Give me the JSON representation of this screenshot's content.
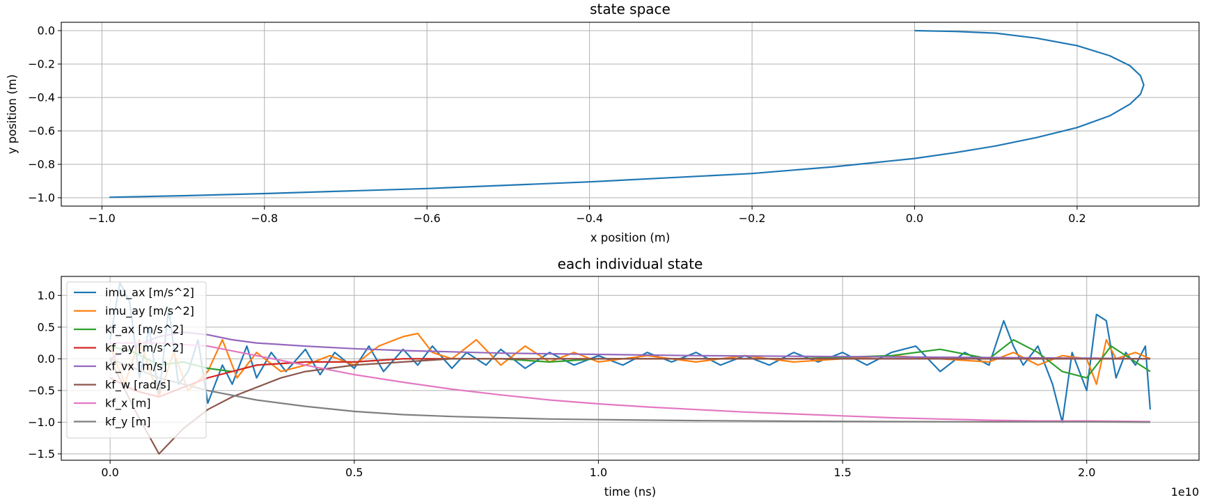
{
  "chart_data": [
    {
      "type": "line",
      "title": "state space",
      "xlabel": "x position (m)",
      "ylabel": "y position (m)",
      "xlim": [
        -1.05,
        0.35
      ],
      "ylim": [
        -1.05,
        0.05
      ],
      "grid": true,
      "x_ticks": [
        -1.0,
        -0.8,
        -0.6,
        -0.4,
        -0.2,
        0.0,
        0.2
      ],
      "x_tick_labels": [
        "−1.0",
        "−0.8",
        "−0.6",
        "−0.4",
        "−0.2",
        "0.0",
        "0.2"
      ],
      "y_ticks": [
        0.0,
        -0.2,
        -0.4,
        -0.6,
        -0.8,
        -1.0
      ],
      "y_tick_labels": [
        "0.0",
        "−0.2",
        "−0.4",
        "−0.6",
        "−0.8",
        "−1.0"
      ],
      "series": [
        {
          "color": "#1f77b4",
          "x": [
            0.0,
            0.05,
            0.1,
            0.15,
            0.2,
            0.24,
            0.265,
            0.278,
            0.282,
            0.278,
            0.265,
            0.24,
            0.2,
            0.15,
            0.1,
            0.05,
            0.0,
            -0.1,
            -0.2,
            -0.3,
            -0.4,
            -0.5,
            -0.6,
            -0.7,
            -0.8,
            -0.9,
            -0.95,
            -0.99,
            -0.97
          ],
          "y": [
            0.0,
            -0.005,
            -0.015,
            -0.045,
            -0.09,
            -0.15,
            -0.21,
            -0.27,
            -0.325,
            -0.38,
            -0.44,
            -0.51,
            -0.58,
            -0.64,
            -0.69,
            -0.73,
            -0.765,
            -0.815,
            -0.855,
            -0.88,
            -0.905,
            -0.925,
            -0.945,
            -0.96,
            -0.975,
            -0.988,
            -0.993,
            -0.997,
            -0.995
          ]
        }
      ]
    },
    {
      "type": "line",
      "title": "each individual state",
      "xlabel": "time (ns)",
      "ylabel": "",
      "x_offset_label": "1e10",
      "xlim": [
        -0.1,
        2.23
      ],
      "ylim": [
        -1.6,
        1.3
      ],
      "grid": true,
      "legend_position": "upper-left",
      "x_ticks": [
        0.0,
        0.5,
        1.0,
        1.5,
        2.0
      ],
      "x_tick_labels": [
        "0.0",
        "0.5",
        "1.0",
        "1.5",
        "2.0"
      ],
      "y_ticks": [
        1.0,
        0.5,
        0.0,
        -0.5,
        -1.0,
        -1.5
      ],
      "y_tick_labels": [
        "1.0",
        "0.5",
        "0.0",
        "−0.5",
        "−1.0",
        "−1.5"
      ],
      "series": [
        {
          "name": "imu_ax [m/s^2]",
          "color": "#1f77b4",
          "x": [
            0.0,
            0.02,
            0.04,
            0.06,
            0.08,
            0.1,
            0.12,
            0.14,
            0.16,
            0.18,
            0.2,
            0.23,
            0.25,
            0.28,
            0.3,
            0.33,
            0.36,
            0.4,
            0.43,
            0.46,
            0.5,
            0.53,
            0.56,
            0.6,
            0.63,
            0.66,
            0.7,
            0.73,
            0.77,
            0.8,
            0.85,
            0.9,
            0.95,
            1.0,
            1.05,
            1.1,
            1.15,
            1.2,
            1.25,
            1.3,
            1.35,
            1.4,
            1.45,
            1.5,
            1.55,
            1.6,
            1.65,
            1.7,
            1.75,
            1.8,
            1.83,
            1.85,
            1.87,
            1.9,
            1.93,
            1.95,
            1.97,
            2.0,
            2.02,
            2.04,
            2.06,
            2.08,
            2.1,
            2.12,
            2.13
          ],
          "y": [
            0.3,
            1.2,
            0.9,
            -0.3,
            0.5,
            -0.6,
            0.8,
            -0.4,
            -0.2,
            0.3,
            -0.7,
            -0.1,
            -0.4,
            0.2,
            -0.3,
            0.1,
            -0.2,
            0.15,
            -0.25,
            0.1,
            -0.15,
            0.2,
            -0.2,
            0.15,
            -0.1,
            0.2,
            -0.15,
            0.1,
            -0.1,
            0.15,
            -0.15,
            0.1,
            -0.1,
            0.05,
            -0.1,
            0.1,
            -0.05,
            0.1,
            -0.1,
            0.05,
            -0.1,
            0.1,
            -0.05,
            0.1,
            -0.1,
            0.1,
            0.2,
            -0.2,
            0.1,
            -0.1,
            0.6,
            0.2,
            -0.1,
            0.2,
            -0.4,
            -1.0,
            0.1,
            -0.5,
            0.7,
            0.6,
            -0.3,
            0.1,
            -0.1,
            0.2,
            -0.8
          ]
        },
        {
          "name": "imu_ay [m/s^2]",
          "color": "#ff7f0e",
          "x": [
            0.0,
            0.03,
            0.06,
            0.1,
            0.13,
            0.16,
            0.2,
            0.23,
            0.26,
            0.3,
            0.35,
            0.4,
            0.45,
            0.5,
            0.55,
            0.6,
            0.63,
            0.66,
            0.7,
            0.75,
            0.8,
            0.85,
            0.9,
            0.95,
            1.0,
            1.1,
            1.2,
            1.3,
            1.4,
            1.5,
            1.6,
            1.7,
            1.8,
            1.85,
            1.9,
            1.95,
            2.0,
            2.02,
            2.04,
            2.06,
            2.1,
            2.13
          ],
          "y": [
            0.2,
            -0.4,
            0.3,
            -0.6,
            0.1,
            -0.5,
            -0.2,
            0.3,
            -0.3,
            0.1,
            -0.2,
            -0.1,
            0.05,
            -0.1,
            0.2,
            0.35,
            0.4,
            0.1,
            0.0,
            0.3,
            -0.1,
            0.2,
            -0.05,
            0.1,
            -0.05,
            0.05,
            -0.05,
            0.05,
            -0.05,
            0.0,
            0.05,
            0.0,
            -0.05,
            0.1,
            -0.1,
            0.05,
            0.0,
            -0.4,
            0.3,
            0.0,
            0.1,
            0.0
          ]
        },
        {
          "name": "kf_ax [m/s^2]",
          "color": "#2ca02c",
          "x": [
            0.0,
            0.05,
            0.1,
            0.15,
            0.2,
            0.25,
            0.3,
            0.4,
            0.5,
            0.6,
            0.7,
            0.8,
            0.9,
            1.0,
            1.2,
            1.4,
            1.6,
            1.7,
            1.8,
            1.85,
            1.9,
            1.95,
            2.0,
            2.05,
            2.1,
            2.13
          ],
          "y": [
            0.2,
            0.1,
            -0.1,
            -0.05,
            -0.15,
            -0.2,
            -0.1,
            -0.05,
            -0.05,
            0.0,
            0.0,
            0.0,
            -0.05,
            0.0,
            0.0,
            0.0,
            0.05,
            0.15,
            0.0,
            0.3,
            0.1,
            -0.2,
            -0.3,
            0.2,
            -0.05,
            -0.2
          ]
        },
        {
          "name": "kf_ay [m/s^2]",
          "color": "#d62728",
          "x": [
            0.0,
            0.05,
            0.1,
            0.15,
            0.2,
            0.25,
            0.3,
            0.4,
            0.5,
            0.6,
            0.8,
            1.0,
            1.5,
            2.0,
            2.13
          ],
          "y": [
            -0.3,
            -0.5,
            -0.6,
            -0.45,
            -0.3,
            -0.2,
            -0.1,
            -0.05,
            -0.05,
            0.0,
            0.0,
            0.0,
            0.0,
            0.0,
            0.0
          ]
        },
        {
          "name": "kf_vx [m/s]",
          "color": "#9467bd",
          "x": [
            0.0,
            0.05,
            0.1,
            0.15,
            0.2,
            0.25,
            0.3,
            0.4,
            0.5,
            0.6,
            0.7,
            0.8,
            0.9,
            1.0,
            1.2,
            1.4,
            1.6,
            1.8,
            2.0,
            2.13
          ],
          "y": [
            0.0,
            0.2,
            0.35,
            0.42,
            0.38,
            0.3,
            0.25,
            0.2,
            0.16,
            0.13,
            0.11,
            0.09,
            0.08,
            0.07,
            0.05,
            0.04,
            0.03,
            0.02,
            0.01,
            0.0
          ]
        },
        {
          "name": "kf_w [rad/s]",
          "color": "#8c564b",
          "x": [
            0.0,
            0.05,
            0.1,
            0.15,
            0.2,
            0.25,
            0.3,
            0.35,
            0.4,
            0.5,
            0.6,
            0.7,
            0.8,
            1.0,
            1.5,
            2.0,
            2.13
          ],
          "y": [
            0.0,
            -0.8,
            -1.5,
            -1.1,
            -0.8,
            -0.6,
            -0.45,
            -0.3,
            -0.2,
            -0.1,
            -0.05,
            0.0,
            0.0,
            0.0,
            0.0,
            0.0,
            0.0
          ]
        },
        {
          "name": "kf_x [m]",
          "color": "#e377c2",
          "x": [
            0.0,
            0.1,
            0.2,
            0.3,
            0.4,
            0.5,
            0.6,
            0.7,
            0.8,
            0.9,
            1.0,
            1.1,
            1.2,
            1.3,
            1.4,
            1.5,
            1.6,
            1.7,
            1.8,
            1.9,
            2.0,
            2.13
          ],
          "y": [
            0.25,
            0.25,
            0.2,
            0.05,
            -0.1,
            -0.25,
            -0.37,
            -0.48,
            -0.57,
            -0.65,
            -0.71,
            -0.76,
            -0.8,
            -0.84,
            -0.87,
            -0.9,
            -0.93,
            -0.95,
            -0.97,
            -0.98,
            -0.98,
            -0.99
          ]
        },
        {
          "name": "kf_y [m]",
          "color": "#7f7f7f",
          "x": [
            0.0,
            0.1,
            0.2,
            0.3,
            0.4,
            0.5,
            0.6,
            0.7,
            0.8,
            0.9,
            1.0,
            1.2,
            1.4,
            1.6,
            1.8,
            2.0,
            2.13
          ],
          "y": [
            0.0,
            -0.3,
            -0.5,
            -0.65,
            -0.75,
            -0.83,
            -0.88,
            -0.91,
            -0.93,
            -0.95,
            -0.96,
            -0.975,
            -0.985,
            -0.99,
            -0.995,
            -0.995,
            -1.0
          ]
        }
      ]
    }
  ]
}
